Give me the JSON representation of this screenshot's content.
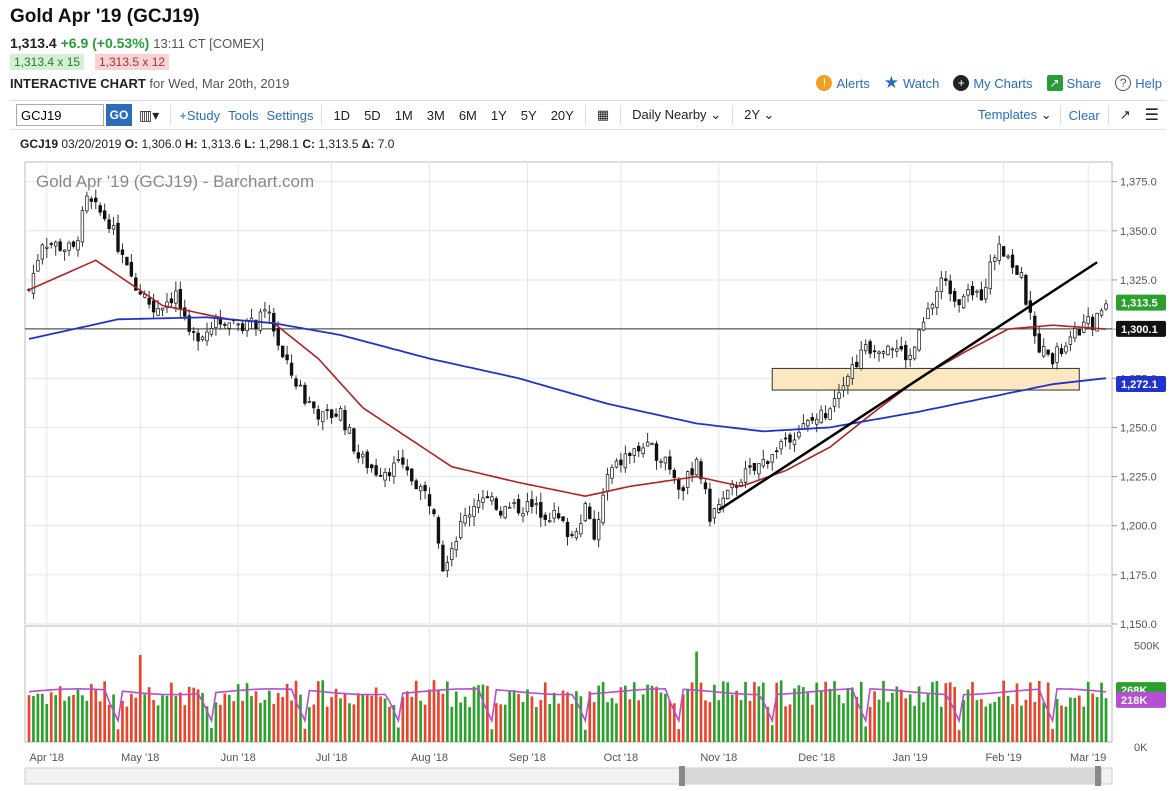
{
  "header": {
    "title": "Gold Apr '19 (GCJ19)",
    "last": "1,313.4",
    "change": "+6.9 (+0.53%)",
    "time": "13:11 CT [COMEX]",
    "bid": "1,313.4 x 15",
    "ask": "1,313.5 x 12",
    "chart_label": "INTERACTIVE CHART",
    "chart_date": "for Wed, Mar 20th, 2019"
  },
  "links": {
    "alerts": "Alerts",
    "watch": "Watch",
    "my_charts": "My Charts",
    "share": "Share",
    "help": "Help"
  },
  "toolbar": {
    "symbol": "GCJ19",
    "go": "GO",
    "study": "+Study",
    "tools": "Tools",
    "settings": "Settings",
    "periods": [
      "1D",
      "5D",
      "1M",
      "3M",
      "6M",
      "1Y",
      "5Y",
      "20Y"
    ],
    "interval": "Daily Nearby",
    "range": "2Y",
    "templates": "Templates",
    "clear": "Clear"
  },
  "ohlc": {
    "symbol": "GCJ19",
    "date": "03/20/2019",
    "o_label": "O:",
    "o": "1,306.0",
    "h_label": "H:",
    "h": "1,313.6",
    "l_label": "L:",
    "l": "1,298.1",
    "c_label": "C:",
    "c": "1,313.5",
    "d_label": "Δ:",
    "d": "7.0"
  },
  "colors": {
    "up": "#2ca02c",
    "down": "#e8452c",
    "ma_short": "#b22222",
    "ma_long": "#2233cc",
    "volume_avg": "#b44fd1",
    "zone": "#fbe7c0",
    "accent": "#2a6ebb"
  },
  "chart_data": {
    "type": "candlestick",
    "title": "Gold Apr '19 (GCJ19) - Barchart.com",
    "ylim": [
      1150,
      1385
    ],
    "yticks": [
      "1,375.0",
      "1,350.0",
      "1,325.0",
      "1,300.0",
      "1,275.0",
      "1,250.0",
      "1,225.0",
      "1,200.0",
      "1,175.0",
      "1,150.0"
    ],
    "ytick_values": [
      1375,
      1350,
      1325,
      1300,
      1275,
      1250,
      1225,
      1200,
      1175,
      1150
    ],
    "xticks": [
      "Apr '18",
      "May '18",
      "Jun '18",
      "Jul '18",
      "Aug '18",
      "Sep '18",
      "Oct '18",
      "Nov '18",
      "Dec '18",
      "Jan '19",
      "Feb '19",
      "Mar '19"
    ],
    "price_path": [
      [
        0,
        1320
      ],
      [
        3,
        1345
      ],
      [
        10,
        1340
      ],
      [
        13,
        1365
      ],
      [
        18,
        1355
      ],
      [
        22,
        1330
      ],
      [
        28,
        1310
      ],
      [
        33,
        1318
      ],
      [
        36,
        1295
      ],
      [
        40,
        1300
      ],
      [
        44,
        1305
      ],
      [
        50,
        1302
      ],
      [
        54,
        1308
      ],
      [
        57,
        1285
      ],
      [
        62,
        1265
      ],
      [
        66,
        1255
      ],
      [
        70,
        1258
      ],
      [
        74,
        1235
      ],
      [
        78,
        1228
      ],
      [
        83,
        1230
      ],
      [
        87,
        1222
      ],
      [
        91,
        1210
      ],
      [
        93,
        1180
      ],
      [
        97,
        1200
      ],
      [
        101,
        1215
      ],
      [
        106,
        1208
      ],
      [
        112,
        1210
      ],
      [
        118,
        1205
      ],
      [
        122,
        1195
      ],
      [
        125,
        1210
      ],
      [
        127,
        1192
      ],
      [
        130,
        1225
      ],
      [
        134,
        1235
      ],
      [
        138,
        1240
      ],
      [
        143,
        1235
      ],
      [
        147,
        1218
      ],
      [
        150,
        1235
      ],
      [
        153,
        1205
      ],
      [
        157,
        1215
      ],
      [
        160,
        1225
      ],
      [
        163,
        1228
      ],
      [
        166,
        1235
      ],
      [
        170,
        1245
      ],
      [
        174,
        1250
      ],
      [
        179,
        1258
      ],
      [
        183,
        1275
      ],
      [
        188,
        1290
      ],
      [
        193,
        1293
      ],
      [
        198,
        1285
      ],
      [
        202,
        1308
      ],
      [
        205,
        1325
      ],
      [
        209,
        1315
      ],
      [
        214,
        1318
      ],
      [
        218,
        1345
      ],
      [
        223,
        1325
      ],
      [
        226,
        1295
      ],
      [
        229,
        1285
      ],
      [
        233,
        1290
      ],
      [
        236,
        1300
      ],
      [
        240,
        1305
      ],
      [
        242,
        1313.5
      ]
    ],
    "ma_short_path": [
      [
        0,
        1320
      ],
      [
        15,
        1335
      ],
      [
        30,
        1312
      ],
      [
        45,
        1305
      ],
      [
        55,
        1303
      ],
      [
        65,
        1285
      ],
      [
        75,
        1260
      ],
      [
        85,
        1245
      ],
      [
        95,
        1230
      ],
      [
        110,
        1222
      ],
      [
        125,
        1215
      ],
      [
        135,
        1220
      ],
      [
        150,
        1225
      ],
      [
        160,
        1220
      ],
      [
        170,
        1228
      ],
      [
        180,
        1240
      ],
      [
        190,
        1258
      ],
      [
        200,
        1275
      ],
      [
        210,
        1288
      ],
      [
        220,
        1300
      ],
      [
        230,
        1302
      ],
      [
        242,
        1300
      ]
    ],
    "ma_long_path": [
      [
        0,
        1295
      ],
      [
        20,
        1305
      ],
      [
        40,
        1306
      ],
      [
        55,
        1303
      ],
      [
        70,
        1297
      ],
      [
        90,
        1285
      ],
      [
        110,
        1275
      ],
      [
        130,
        1262
      ],
      [
        150,
        1252
      ],
      [
        165,
        1248
      ],
      [
        180,
        1250
      ],
      [
        200,
        1258
      ],
      [
        215,
        1265
      ],
      [
        230,
        1272
      ],
      [
        242,
        1275
      ]
    ],
    "trendline": [
      [
        155,
        1208
      ],
      [
        240,
        1334
      ]
    ],
    "zone": {
      "x0": 167,
      "x1": 236,
      "y0": 1269,
      "y1": 1280
    },
    "hline": 1300.1,
    "last_labels": [
      {
        "label": "1,313.5",
        "value": 1313.5,
        "color": "#2ca02c"
      },
      {
        "label": "1,300.1",
        "value": 1300.1,
        "color": "#111"
      },
      {
        "label": "1,272.1",
        "value": 1272.1,
        "color": "#2233cc"
      }
    ],
    "volume": {
      "yticks": [
        "500K",
        "0K"
      ],
      "ytick_values": [
        500,
        0
      ],
      "last_labels": [
        {
          "label": "268K",
          "value": 268,
          "color": "#2ca02c"
        },
        {
          "label": "218K",
          "value": 218,
          "color": "#b44fd1"
        }
      ]
    }
  }
}
